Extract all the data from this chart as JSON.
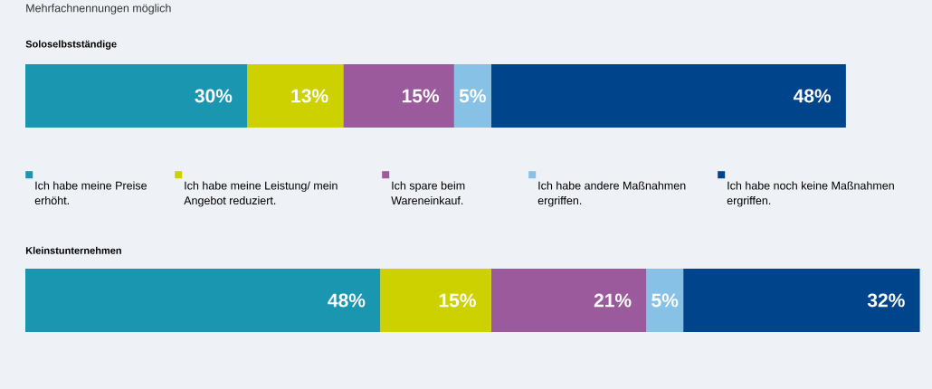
{
  "chart_data": [
    {
      "type": "bar",
      "orientation": "horizontal",
      "stacked": true,
      "title": "Soloselbstständige",
      "annotations": [
        "Mehrfachnennungen möglich"
      ],
      "categories": [
        null
      ],
      "tick_labels": false,
      "legend": "bottom",
      "series": [
        {
          "name": "Ich habe meine Preise erhöht.",
          "color": "#1a96b0",
          "values": [
            30
          ],
          "value_labels": [
            "30%"
          ]
        },
        {
          "name": "Ich habe meine Leistung/ mein Angebot reduziert.",
          "color": "#cdd100",
          "values": [
            13
          ],
          "value_labels": [
            "13%"
          ]
        },
        {
          "name": "Ich spare beim Wareneinkauf.",
          "color": "#9b5a9b",
          "values": [
            15
          ],
          "value_labels": [
            "15%"
          ]
        },
        {
          "name": "Ich habe andere Maßnahmen ergriffen.",
          "color": "#87c2e6",
          "values": [
            5
          ],
          "value_labels": [
            "5%"
          ]
        },
        {
          "name": "Ich habe noch keine Maßnahmen ergriffen.",
          "color": "#00448c",
          "values": [
            48
          ],
          "value_labels": [
            "48%"
          ]
        }
      ]
    },
    {
      "type": "bar",
      "orientation": "horizontal",
      "stacked": true,
      "title": "Kleinstunternehmen",
      "categories": [
        null
      ],
      "tick_labels": false,
      "series": [
        {
          "color": "#1a96b0",
          "values": [
            48
          ],
          "value_labels": [
            "48%"
          ]
        },
        {
          "color": "#cdd100",
          "values": [
            15
          ],
          "value_labels": [
            "15%"
          ]
        },
        {
          "color": "#9b5a9b",
          "values": [
            21
          ],
          "value_labels": [
            "21%"
          ]
        },
        {
          "color": "#87c2e6",
          "values": [
            5
          ],
          "value_labels": [
            "5%"
          ]
        },
        {
          "color": "#00448c",
          "values": [
            32
          ],
          "value_labels": [
            "32%"
          ]
        }
      ]
    }
  ]
}
